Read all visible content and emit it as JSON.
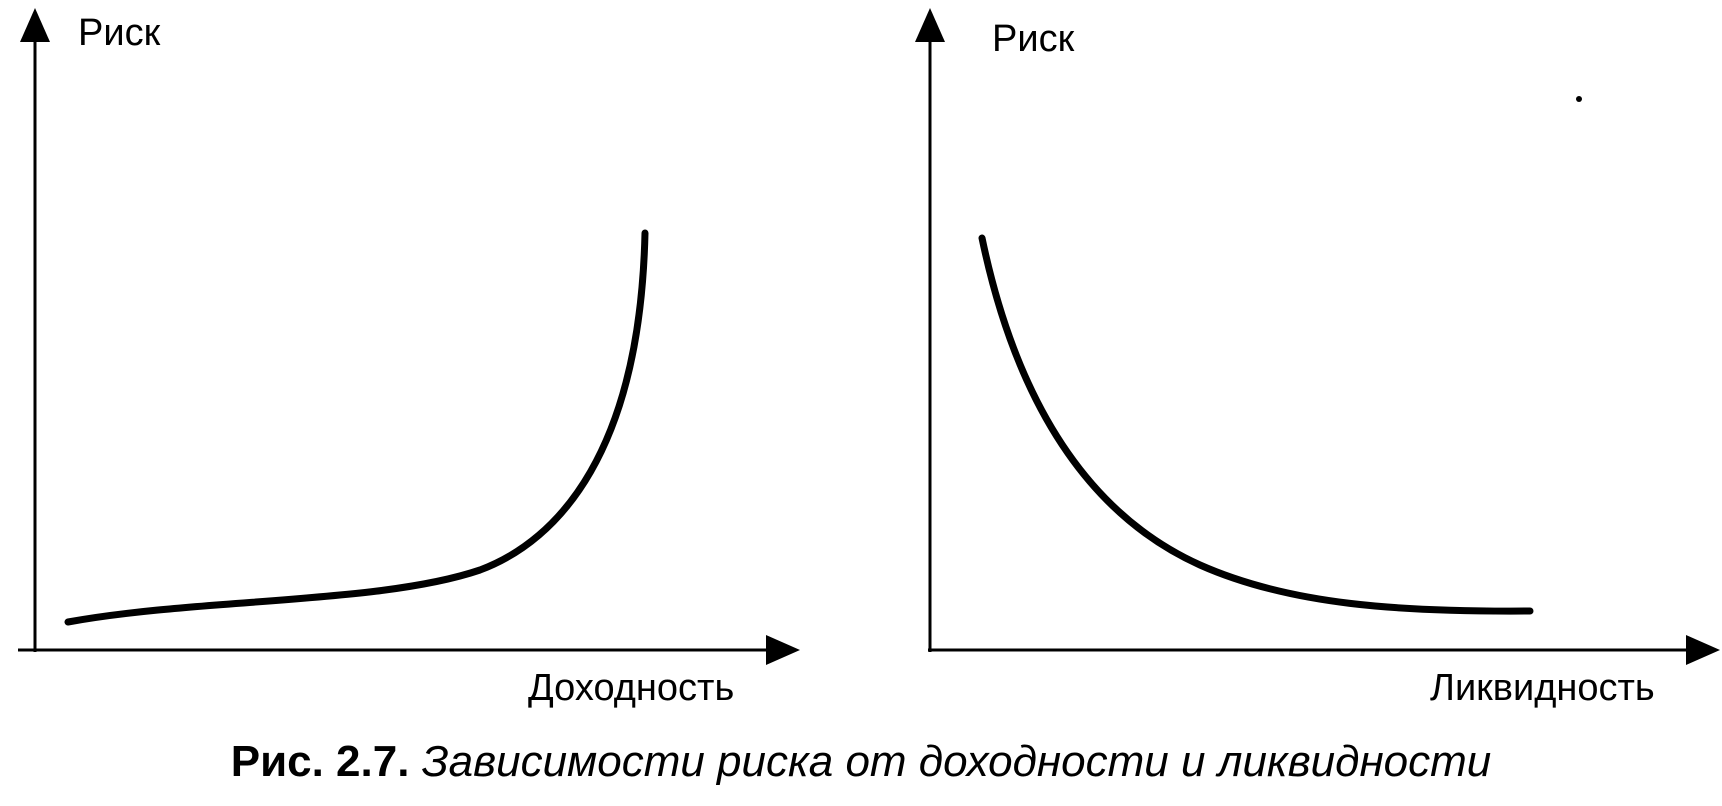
{
  "panels": [
    {
      "y_label": "Риск",
      "x_label": "Доходность",
      "curve": "increasing-convex"
    },
    {
      "y_label": "Риск",
      "x_label": "Ликвидность",
      "curve": "decreasing-convex"
    }
  ],
  "caption": {
    "number": "Рис. 2.7.",
    "text": "Зависимости риска от доходности и ликвидности"
  },
  "colors": {
    "ink": "#000000",
    "background": "#ffffff"
  }
}
